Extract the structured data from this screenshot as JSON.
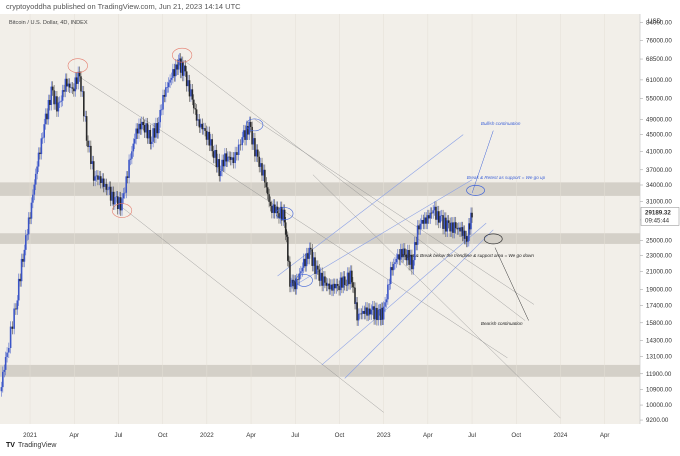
{
  "header": {
    "publish_line": "cryptoyoddha published on TradingView.com, Jun 21, 2023 14:14 UTC"
  },
  "footer": {
    "brand": "TradingView",
    "logo": "tradingview-logo-icon"
  },
  "chart_data": {
    "type": "candlestick",
    "symbol_title": "Bitcoin / U.S. Dollar, 4D, INDEX",
    "currency": "USD",
    "y_scale": "log",
    "ylim": [
      9000,
      88000
    ],
    "y_ticks": [
      "84000.00",
      "76000.00",
      "68500.00",
      "61000.00",
      "55000.00",
      "49000.00",
      "45000.00",
      "41000.00",
      "37000.00",
      "34000.00",
      "31000.00",
      "28000.00",
      "25000.00",
      "23000.00",
      "21000.00",
      "19000.00",
      "17400.00",
      "15800.00",
      "14300.00",
      "13100.00",
      "11900.00",
      "10900.00",
      "10000.00",
      "9200.00"
    ],
    "y_tick_values": [
      84000,
      76000,
      68500,
      61000,
      55000,
      49000,
      45000,
      41000,
      37000,
      34000,
      31000,
      28000,
      25000,
      23000,
      21000,
      19000,
      17400,
      15800,
      14300,
      13100,
      11900,
      10900,
      10000,
      9200
    ],
    "x_ticks": [
      "2021",
      "Apr",
      "Jul",
      "Oct",
      "2022",
      "Apr",
      "Jul",
      "Oct",
      "2023",
      "Apr",
      "Jul",
      "Oct",
      "2024",
      "Apr"
    ],
    "x_tick_values": [
      2021.0,
      2021.25,
      2021.5,
      2021.75,
      2022.0,
      2022.25,
      2022.5,
      2022.75,
      2023.0,
      2023.25,
      2023.5,
      2023.75,
      2024.0,
      2024.25
    ],
    "xlim": [
      2020.83,
      2024.45
    ],
    "last_price": "29189.32",
    "last_price_value": 29189.32,
    "countdown": "09:45:44",
    "price_path": [
      [
        2020.83,
        10800
      ],
      [
        2020.87,
        13500
      ],
      [
        2020.92,
        17500
      ],
      [
        2020.96,
        23000
      ],
      [
        2021.0,
        29000
      ],
      [
        2021.04,
        38000
      ],
      [
        2021.08,
        47000
      ],
      [
        2021.12,
        57000
      ],
      [
        2021.16,
        52000
      ],
      [
        2021.2,
        60000
      ],
      [
        2021.24,
        58000
      ],
      [
        2021.28,
        63500
      ],
      [
        2021.32,
        45000
      ],
      [
        2021.36,
        36000
      ],
      [
        2021.4,
        35000
      ],
      [
        2021.44,
        33000
      ],
      [
        2021.48,
        31000
      ],
      [
        2021.52,
        30500
      ],
      [
        2021.56,
        38000
      ],
      [
        2021.6,
        46000
      ],
      [
        2021.64,
        48000
      ],
      [
        2021.68,
        44000
      ],
      [
        2021.72,
        47000
      ],
      [
        2021.76,
        57000
      ],
      [
        2021.8,
        62000
      ],
      [
        2021.84,
        67000
      ],
      [
        2021.87,
        64000
      ],
      [
        2021.91,
        56000
      ],
      [
        2021.95,
        48000
      ],
      [
        2021.99,
        46000
      ],
      [
        2022.03,
        42000
      ],
      [
        2022.07,
        37000
      ],
      [
        2022.11,
        40000
      ],
      [
        2022.15,
        39000
      ],
      [
        2022.2,
        44000
      ],
      [
        2022.24,
        47000
      ],
      [
        2022.28,
        40000
      ],
      [
        2022.32,
        36000
      ],
      [
        2022.36,
        30000
      ],
      [
        2022.4,
        29500
      ],
      [
        2022.44,
        28500
      ],
      [
        2022.47,
        20000
      ],
      [
        2022.5,
        19500
      ],
      [
        2022.54,
        21500
      ],
      [
        2022.58,
        23500
      ],
      [
        2022.62,
        21000
      ],
      [
        2022.66,
        19800
      ],
      [
        2022.7,
        19200
      ],
      [
        2022.74,
        19500
      ],
      [
        2022.78,
        20000
      ],
      [
        2022.82,
        20500
      ],
      [
        2022.85,
        16500
      ],
      [
        2022.89,
        16800
      ],
      [
        2022.93,
        16800
      ],
      [
        2022.97,
        16500
      ],
      [
        2023.0,
        16700
      ],
      [
        2023.04,
        21000
      ],
      [
        2023.08,
        23000
      ],
      [
        2023.12,
        23500
      ],
      [
        2023.16,
        22000
      ],
      [
        2023.2,
        27500
      ],
      [
        2023.24,
        28000
      ],
      [
        2023.28,
        29500
      ],
      [
        2023.32,
        28000
      ],
      [
        2023.36,
        27000
      ],
      [
        2023.4,
        26800
      ],
      [
        2023.44,
        26500
      ],
      [
        2023.47,
        25000
      ],
      [
        2023.5,
        29189
      ]
    ],
    "support_resistance_zones": [
      [
        32000,
        34500
      ],
      [
        24500,
        26000
      ],
      [
        11700,
        12500
      ]
    ],
    "annotations": {
      "bullish": "Bullish continuation",
      "break_retest": "Break & Retest as support = We go up",
      "reject_break": "Reject & Break below the trendline & support area = We go down",
      "bearish": "Bearish continuation"
    },
    "colors": {
      "up": "#3b55c7",
      "down": "#2a2a2a",
      "zone": "#cfcac2",
      "bg": "#f2efe9",
      "channel": "#8aa0e6",
      "red_circle": "#e47b6c",
      "blue_circle": "#3f63d8",
      "diag": "#8a8a8a"
    }
  }
}
